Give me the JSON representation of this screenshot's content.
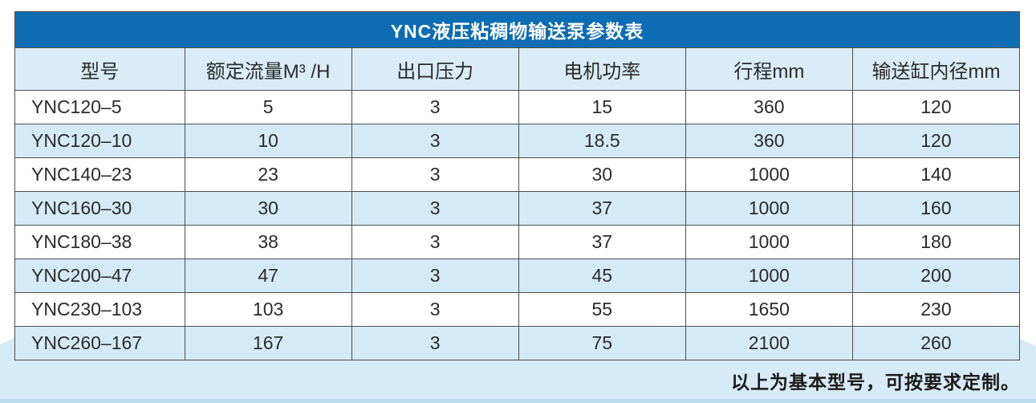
{
  "table": {
    "title": "YNC液压粘稠物输送泵参数表",
    "columns": [
      "型号",
      "额定流量M³ /H",
      "出口压力",
      "电机功率",
      "行程mm",
      "输送缸内径mm"
    ],
    "rows": [
      [
        "YNC120–5",
        "5",
        "3",
        "15",
        "360",
        "120"
      ],
      [
        "YNC120–10",
        "10",
        "3",
        "18.5",
        "360",
        "120"
      ],
      [
        "YNC140–23",
        "23",
        "3",
        "30",
        "1000",
        "140"
      ],
      [
        "YNC160–30",
        "30",
        "3",
        "37",
        "1000",
        "160"
      ],
      [
        "YNC180–38",
        "38",
        "3",
        "37",
        "1000",
        "180"
      ],
      [
        "YNC200–47",
        "47",
        "3",
        "45",
        "1000",
        "200"
      ],
      [
        "YNC230–103",
        "103",
        "3",
        "55",
        "1650",
        "230"
      ],
      [
        "YNC260–167",
        "167",
        "3",
        "75",
        "2100",
        "260"
      ]
    ],
    "footnote": "以上为基本型号，可按要求定制。"
  },
  "colors": {
    "title_bar_blue": "#0e6cb2",
    "header_row_blue": "#d9ecf8",
    "alt_row_blue": "#d5eaf7",
    "background_band_blue": "#d7eaf7",
    "band_edge_blue": "#bedbee",
    "border_gray": "#4d4d4d",
    "title_text": "#ffffff",
    "cell_text": "#2b2b2b"
  }
}
